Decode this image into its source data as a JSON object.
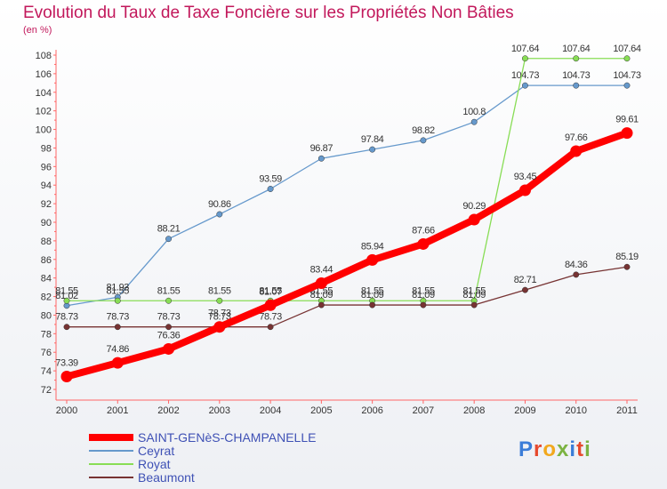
{
  "title": "Evolution du Taux de Taxe Foncière sur les Propriétés Non Bâties",
  "unit": "(en %)",
  "chart_data": {
    "type": "line",
    "x": [
      "2000",
      "2001",
      "2002",
      "2003",
      "2004",
      "2005",
      "2006",
      "2007",
      "2008",
      "2009",
      "2010",
      "2011"
    ],
    "ylim": [
      72,
      108
    ],
    "yticks": [
      72,
      74,
      76,
      78,
      80,
      82,
      84,
      86,
      88,
      90,
      92,
      94,
      96,
      98,
      100,
      102,
      104,
      106,
      108
    ],
    "grid": false,
    "legend_position": "bottom-left",
    "series": [
      {
        "name": "SAINT-GENèS-CHAMPANELLE",
        "color": "#ff0000",
        "width": 8,
        "values": [
          73.39,
          74.86,
          76.36,
          78.73,
          81.07,
          83.44,
          85.94,
          87.66,
          90.29,
          93.45,
          97.66,
          99.61
        ]
      },
      {
        "name": "Ceyrat",
        "color": "#6699cc",
        "width": 1.3,
        "values": [
          81.02,
          81.93,
          88.21,
          90.86,
          93.59,
          96.87,
          97.84,
          98.82,
          100.8,
          104.73,
          104.73,
          104.73
        ]
      },
      {
        "name": "Royat",
        "color": "#88dd55",
        "width": 1.3,
        "values": [
          81.55,
          81.55,
          81.55,
          81.55,
          81.55,
          81.55,
          81.55,
          81.55,
          81.55,
          107.64,
          107.64,
          107.64
        ]
      },
      {
        "name": "Beaumont",
        "color": "#773333",
        "width": 1.3,
        "values": [
          78.73,
          78.73,
          78.73,
          78.73,
          78.73,
          81.09,
          81.09,
          81.09,
          81.09,
          82.71,
          84.36,
          85.19
        ]
      }
    ]
  },
  "brand": {
    "text": "Proxiti",
    "colors": [
      "#3b7dd8",
      "#e6492d",
      "#f2a81d",
      "#7cb342",
      "#3b7dd8",
      "#e6492d",
      "#7cb342"
    ]
  }
}
